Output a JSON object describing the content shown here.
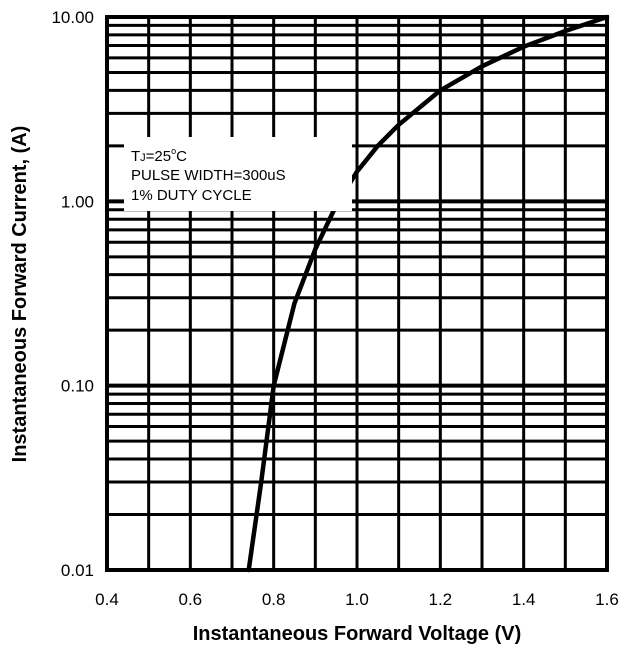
{
  "chart_data": {
    "type": "line",
    "xlabel": "Instantaneous Forward Voltage (V)",
    "ylabel": "Instantaneous Forward Current, (A)",
    "xlim": [
      0.4,
      1.6
    ],
    "ylim": [
      0.01,
      10
    ],
    "yscale": "log",
    "grid": true,
    "x_ticks": [
      "0.4",
      "0.6",
      "0.8",
      "1.0",
      "1.2",
      "1.4",
      "1.6"
    ],
    "y_ticks": [
      "0.01",
      "0.10",
      "1.00",
      "10.00"
    ],
    "annotation": {
      "tj_prefix": "T",
      "tj_sub": "J",
      "tj_value": "=25",
      "tj_deg": "o",
      "tj_unit": "C",
      "line2": "PULSE WIDTH=300uS",
      "line3": "1% DUTY CYCLE"
    },
    "series": [
      {
        "x": [
          0.74,
          0.77,
          0.8,
          0.85,
          0.9,
          0.95,
          1.0,
          1.05,
          1.1,
          1.2,
          1.3,
          1.4,
          1.5,
          1.6
        ],
        "y": [
          0.01,
          0.03,
          0.1,
          0.28,
          0.55,
          0.95,
          1.45,
          2.0,
          2.6,
          4.0,
          5.4,
          6.9,
          8.4,
          10.0
        ]
      }
    ]
  }
}
